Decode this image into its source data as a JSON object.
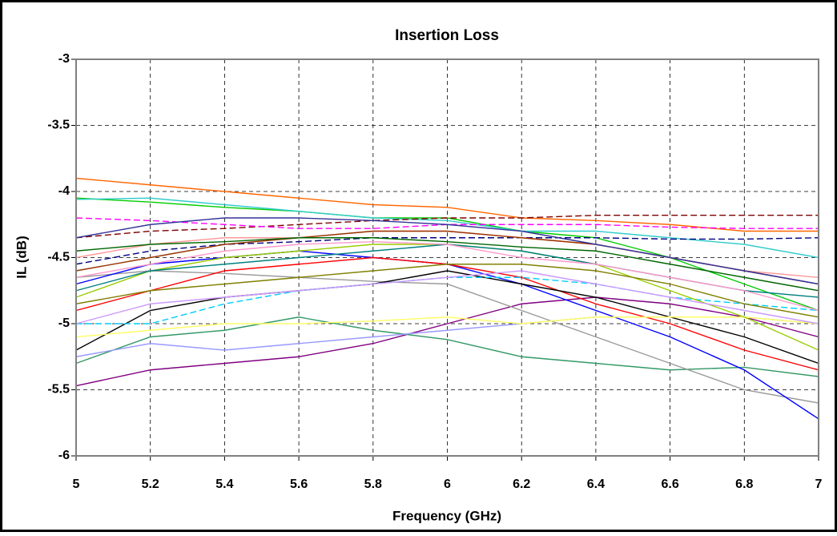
{
  "chart_data": {
    "type": "line",
    "title": "Insertion Loss",
    "x_label": "Frequency (GHz)",
    "y_label": "IL (dB)",
    "x": [
      5,
      5.2,
      5.4,
      5.6,
      5.8,
      6,
      6.2,
      6.4,
      6.6,
      6.8,
      7
    ],
    "xlim": [
      5,
      7
    ],
    "xticks": [
      5,
      5.2,
      5.4,
      5.6,
      5.8,
      6,
      6.2,
      6.4,
      6.6,
      6.8,
      7
    ],
    "ylim": [
      -6,
      -3
    ],
    "yticks": [
      -6,
      -5.5,
      -5,
      -4.5,
      -4,
      -3.5,
      -3
    ],
    "grid": true,
    "series": [
      {
        "color": "#ff6600",
        "dashed": false,
        "values": [
          -3.9,
          -3.95,
          -4.0,
          -4.05,
          -4.1,
          -4.12,
          -4.2,
          -4.22,
          -4.25,
          -4.3,
          -4.3
        ]
      },
      {
        "color": "#00cc00",
        "dashed": false,
        "values": [
          -4.05,
          -4.08,
          -4.12,
          -4.15,
          -4.2,
          -4.2,
          -4.3,
          -4.35,
          -4.5,
          -4.7,
          -4.9
        ]
      },
      {
        "color": "#33cccc",
        "dashed": false,
        "values": [
          -4.06,
          -4.05,
          -4.1,
          -4.15,
          -4.2,
          -4.22,
          -4.3,
          -4.3,
          -4.35,
          -4.4,
          -4.5
        ]
      },
      {
        "color": "#800000",
        "dashed": true,
        "values": [
          -4.35,
          -4.3,
          -4.28,
          -4.25,
          -4.22,
          -4.2,
          -4.2,
          -4.18,
          -4.18,
          -4.18,
          -4.18
        ]
      },
      {
        "color": "#000080",
        "dashed": true,
        "values": [
          -4.55,
          -4.45,
          -4.4,
          -4.38,
          -4.35,
          -4.35,
          -4.35,
          -4.35,
          -4.36,
          -4.36,
          -4.35
        ]
      },
      {
        "color": "#ff00ff",
        "dashed": true,
        "values": [
          -4.2,
          -4.22,
          -4.25,
          -4.28,
          -4.28,
          -4.25,
          -4.25,
          -4.25,
          -4.27,
          -4.28,
          -4.28
        ]
      },
      {
        "color": "#800080",
        "dashed": false,
        "values": [
          -5.47,
          -5.35,
          -5.3,
          -5.25,
          -5.15,
          -5.0,
          -4.85,
          -4.8,
          -4.85,
          -4.95,
          -5.1
        ]
      },
      {
        "color": "#339966",
        "dashed": false,
        "values": [
          -5.3,
          -5.1,
          -5.05,
          -4.95,
          -5.05,
          -5.12,
          -5.25,
          -5.3,
          -5.35,
          -5.33,
          -5.4
        ]
      },
      {
        "color": "#999999",
        "dashed": false,
        "values": [
          -4.65,
          -4.6,
          -4.62,
          -4.65,
          -4.68,
          -4.7,
          -4.9,
          -5.1,
          -5.3,
          -5.5,
          -5.6
        ]
      },
      {
        "color": "#0000ff",
        "dashed": false,
        "values": [
          -4.7,
          -4.55,
          -4.5,
          -4.45,
          -4.5,
          -4.55,
          -4.7,
          -4.9,
          -5.1,
          -5.35,
          -5.72
        ]
      },
      {
        "color": "#ff0000",
        "dashed": false,
        "values": [
          -4.9,
          -4.75,
          -4.6,
          -4.55,
          -4.5,
          -4.55,
          -4.65,
          -4.85,
          -5.0,
          -5.2,
          -5.35
        ]
      },
      {
        "color": "#000000",
        "dashed": false,
        "values": [
          -5.2,
          -4.9,
          -4.8,
          -4.75,
          -4.7,
          -4.6,
          -4.7,
          -4.8,
          -4.95,
          -5.1,
          -5.3
        ]
      },
      {
        "color": "#9999ff",
        "dashed": false,
        "values": [
          -5.25,
          -5.15,
          -5.2,
          -5.15,
          -5.1,
          -5.05,
          -5.0,
          -4.95,
          -4.95,
          -4.95,
          -5.0
        ]
      },
      {
        "color": "#ffff66",
        "dashed": false,
        "values": [
          -5.1,
          -5.05,
          -5.0,
          -5.0,
          -4.98,
          -4.95,
          -5.0,
          -4.95,
          -4.95,
          -4.95,
          -5.0
        ]
      },
      {
        "color": "#00ccff",
        "dashed": true,
        "values": [
          -5.0,
          -5.0,
          -4.85,
          -4.75,
          -4.7,
          -4.65,
          -4.65,
          -4.7,
          -4.8,
          -4.85,
          -4.9
        ]
      },
      {
        "color": "#99cc00",
        "dashed": false,
        "values": [
          -4.8,
          -4.6,
          -4.5,
          -4.45,
          -4.4,
          -4.4,
          -4.45,
          -4.55,
          -4.75,
          -4.95,
          -5.2
        ]
      },
      {
        "color": "#ff9999",
        "dashed": false,
        "values": [
          -4.5,
          -4.4,
          -4.35,
          -4.35,
          -4.3,
          -4.3,
          -4.35,
          -4.4,
          -4.5,
          -4.6,
          -4.65
        ]
      },
      {
        "color": "#993300",
        "dashed": false,
        "values": [
          -4.6,
          -4.5,
          -4.4,
          -4.35,
          -4.3,
          -4.3,
          -4.35,
          -4.4,
          -4.5,
          -4.6,
          -4.7
        ]
      },
      {
        "color": "#008080",
        "dashed": false,
        "values": [
          -4.75,
          -4.6,
          -4.55,
          -4.5,
          -4.45,
          -4.4,
          -4.45,
          -4.55,
          -4.65,
          -4.75,
          -4.8
        ]
      },
      {
        "color": "#333399",
        "dashed": false,
        "values": [
          -4.35,
          -4.25,
          -4.2,
          -4.2,
          -4.22,
          -4.25,
          -4.3,
          -4.4,
          -4.5,
          -4.6,
          -4.7
        ]
      },
      {
        "color": "#808000",
        "dashed": false,
        "values": [
          -4.85,
          -4.75,
          -4.7,
          -4.65,
          -4.6,
          -4.55,
          -4.55,
          -4.6,
          -4.7,
          -4.85,
          -4.95
        ]
      },
      {
        "color": "#ff99cc",
        "dashed": false,
        "values": [
          -4.65,
          -4.55,
          -4.45,
          -4.4,
          -4.38,
          -4.4,
          -4.5,
          -4.55,
          -4.65,
          -4.75,
          -4.9
        ]
      },
      {
        "color": "#006600",
        "dashed": false,
        "values": [
          -4.45,
          -4.4,
          -4.38,
          -4.35,
          -4.35,
          -4.38,
          -4.42,
          -4.45,
          -4.55,
          -4.65,
          -4.75
        ]
      },
      {
        "color": "#cc99ff",
        "dashed": false,
        "values": [
          -5.0,
          -4.85,
          -4.8,
          -4.75,
          -4.7,
          -4.65,
          -4.6,
          -4.7,
          -4.8,
          -4.9,
          -5.0
        ]
      }
    ]
  }
}
